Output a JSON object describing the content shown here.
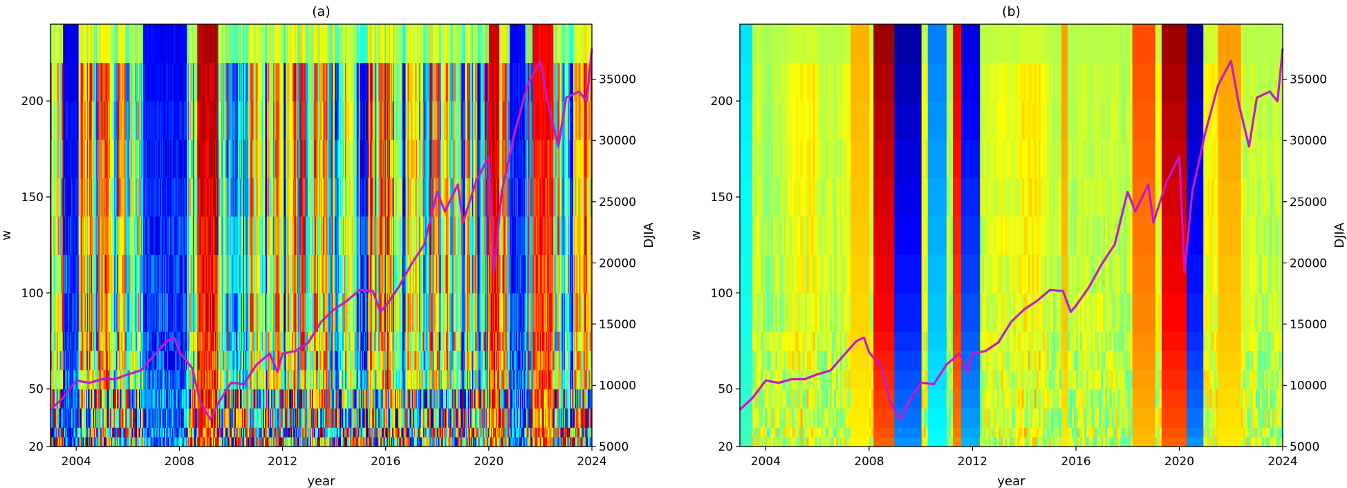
{
  "chart_data": [
    {
      "type": "heatmap",
      "title": "(a)",
      "xlabel": "year",
      "ylabel": "w",
      "y2label": "DJIA",
      "xlim": [
        2003,
        2024
      ],
      "ylim": [
        20,
        240
      ],
      "y2lim": [
        5000,
        39500
      ],
      "xticks": [
        2004,
        2008,
        2012,
        2016,
        2020,
        2024
      ],
      "yticks": [
        20,
        50,
        100,
        150,
        200
      ],
      "y2ticks": [
        5000,
        10000,
        15000,
        20000,
        25000,
        30000,
        35000
      ],
      "line_color": "#c21bc4",
      "colormap": "jet",
      "dominant_bands": [
        {
          "start": 2003.5,
          "end": 2004.1,
          "level": 0.08
        },
        {
          "start": 2006.6,
          "end": 2008.3,
          "level": 0.1
        },
        {
          "start": 2008.7,
          "end": 2009.5,
          "level": 0.97
        },
        {
          "start": 2020.0,
          "end": 2020.4,
          "level": 0.95
        },
        {
          "start": 2020.8,
          "end": 2021.4,
          "level": 0.1
        },
        {
          "start": 2021.7,
          "end": 2022.5,
          "level": 0.9
        }
      ],
      "djia_series": [
        [
          2003.0,
          8000
        ],
        [
          2003.5,
          9000
        ],
        [
          2004.0,
          10400
        ],
        [
          2004.5,
          10200
        ],
        [
          2005.0,
          10500
        ],
        [
          2005.5,
          10500
        ],
        [
          2006.0,
          10900
        ],
        [
          2006.5,
          11200
        ],
        [
          2007.0,
          12400
        ],
        [
          2007.5,
          13600
        ],
        [
          2007.8,
          13900
        ],
        [
          2008.0,
          12700
        ],
        [
          2008.5,
          11400
        ],
        [
          2008.8,
          8700
        ],
        [
          2009.2,
          7200
        ],
        [
          2009.5,
          8500
        ],
        [
          2010.0,
          10200
        ],
        [
          2010.5,
          10100
        ],
        [
          2011.0,
          11700
        ],
        [
          2011.5,
          12600
        ],
        [
          2011.8,
          11100
        ],
        [
          2012.0,
          12600
        ],
        [
          2012.5,
          12800
        ],
        [
          2013.0,
          13500
        ],
        [
          2013.5,
          15200
        ],
        [
          2014.0,
          16200
        ],
        [
          2014.5,
          16900
        ],
        [
          2015.0,
          17800
        ],
        [
          2015.5,
          17700
        ],
        [
          2015.8,
          16000
        ],
        [
          2016.0,
          16500
        ],
        [
          2016.5,
          18000
        ],
        [
          2017.0,
          19900
        ],
        [
          2017.5,
          21500
        ],
        [
          2018.0,
          25800
        ],
        [
          2018.3,
          24200
        ],
        [
          2018.8,
          26400
        ],
        [
          2019.0,
          23300
        ],
        [
          2019.5,
          26600
        ],
        [
          2020.0,
          28700
        ],
        [
          2020.2,
          19200
        ],
        [
          2020.5,
          25800
        ],
        [
          2021.0,
          30600
        ],
        [
          2021.5,
          34500
        ],
        [
          2022.0,
          36500
        ],
        [
          2022.3,
          33000
        ],
        [
          2022.7,
          29500
        ],
        [
          2023.0,
          33500
        ],
        [
          2023.5,
          34000
        ],
        [
          2023.8,
          33200
        ],
        [
          2024.0,
          37500
        ]
      ]
    },
    {
      "type": "heatmap",
      "title": "(b)",
      "xlabel": "year",
      "ylabel": "w",
      "y2label": "DJIA",
      "xlim": [
        2003,
        2024
      ],
      "ylim": [
        20,
        240
      ],
      "y2lim": [
        5000,
        39500
      ],
      "xticks": [
        2004,
        2008,
        2012,
        2016,
        2020,
        2024
      ],
      "yticks": [
        20,
        50,
        100,
        150,
        200
      ],
      "y2ticks": [
        5000,
        10000,
        15000,
        20000,
        25000,
        30000,
        35000
      ],
      "line_color": "#c21bc4",
      "colormap": "jet",
      "dominant_bands": [
        {
          "start": 2003.0,
          "end": 2003.5,
          "level": 0.35
        },
        {
          "start": 2007.3,
          "end": 2008.0,
          "level": 0.7
        },
        {
          "start": 2008.2,
          "end": 2009.0,
          "level": 0.97
        },
        {
          "start": 2009.0,
          "end": 2010.0,
          "level": 0.04
        },
        {
          "start": 2010.3,
          "end": 2011.0,
          "level": 0.25
        },
        {
          "start": 2011.2,
          "end": 2011.6,
          "level": 0.9
        },
        {
          "start": 2011.6,
          "end": 2012.3,
          "level": 0.1
        },
        {
          "start": 2015.4,
          "end": 2015.7,
          "level": 0.72
        },
        {
          "start": 2018.2,
          "end": 2019.1,
          "level": 0.8
        },
        {
          "start": 2019.3,
          "end": 2020.3,
          "level": 0.97
        },
        {
          "start": 2020.3,
          "end": 2020.9,
          "level": 0.04
        },
        {
          "start": 2021.5,
          "end": 2022.4,
          "level": 0.72
        }
      ],
      "djia_series": [
        [
          2003.0,
          8000
        ],
        [
          2003.5,
          9000
        ],
        [
          2004.0,
          10400
        ],
        [
          2004.5,
          10200
        ],
        [
          2005.0,
          10500
        ],
        [
          2005.5,
          10500
        ],
        [
          2006.0,
          10900
        ],
        [
          2006.5,
          11200
        ],
        [
          2007.0,
          12400
        ],
        [
          2007.5,
          13600
        ],
        [
          2007.8,
          13900
        ],
        [
          2008.0,
          12700
        ],
        [
          2008.5,
          11400
        ],
        [
          2008.8,
          8700
        ],
        [
          2009.2,
          7200
        ],
        [
          2009.5,
          8500
        ],
        [
          2010.0,
          10200
        ],
        [
          2010.5,
          10100
        ],
        [
          2011.0,
          11700
        ],
        [
          2011.5,
          12600
        ],
        [
          2011.8,
          11100
        ],
        [
          2012.0,
          12600
        ],
        [
          2012.5,
          12800
        ],
        [
          2013.0,
          13500
        ],
        [
          2013.5,
          15200
        ],
        [
          2014.0,
          16200
        ],
        [
          2014.5,
          16900
        ],
        [
          2015.0,
          17800
        ],
        [
          2015.5,
          17700
        ],
        [
          2015.8,
          16000
        ],
        [
          2016.0,
          16500
        ],
        [
          2016.5,
          18000
        ],
        [
          2017.0,
          19900
        ],
        [
          2017.5,
          21500
        ],
        [
          2018.0,
          25800
        ],
        [
          2018.3,
          24200
        ],
        [
          2018.8,
          26400
        ],
        [
          2019.0,
          23300
        ],
        [
          2019.5,
          26600
        ],
        [
          2020.0,
          28700
        ],
        [
          2020.2,
          19200
        ],
        [
          2020.5,
          25800
        ],
        [
          2021.0,
          30600
        ],
        [
          2021.5,
          34500
        ],
        [
          2022.0,
          36500
        ],
        [
          2022.3,
          33000
        ],
        [
          2022.7,
          29500
        ],
        [
          2023.0,
          33500
        ],
        [
          2023.5,
          34000
        ],
        [
          2023.8,
          33200
        ],
        [
          2024.0,
          37500
        ]
      ]
    }
  ]
}
